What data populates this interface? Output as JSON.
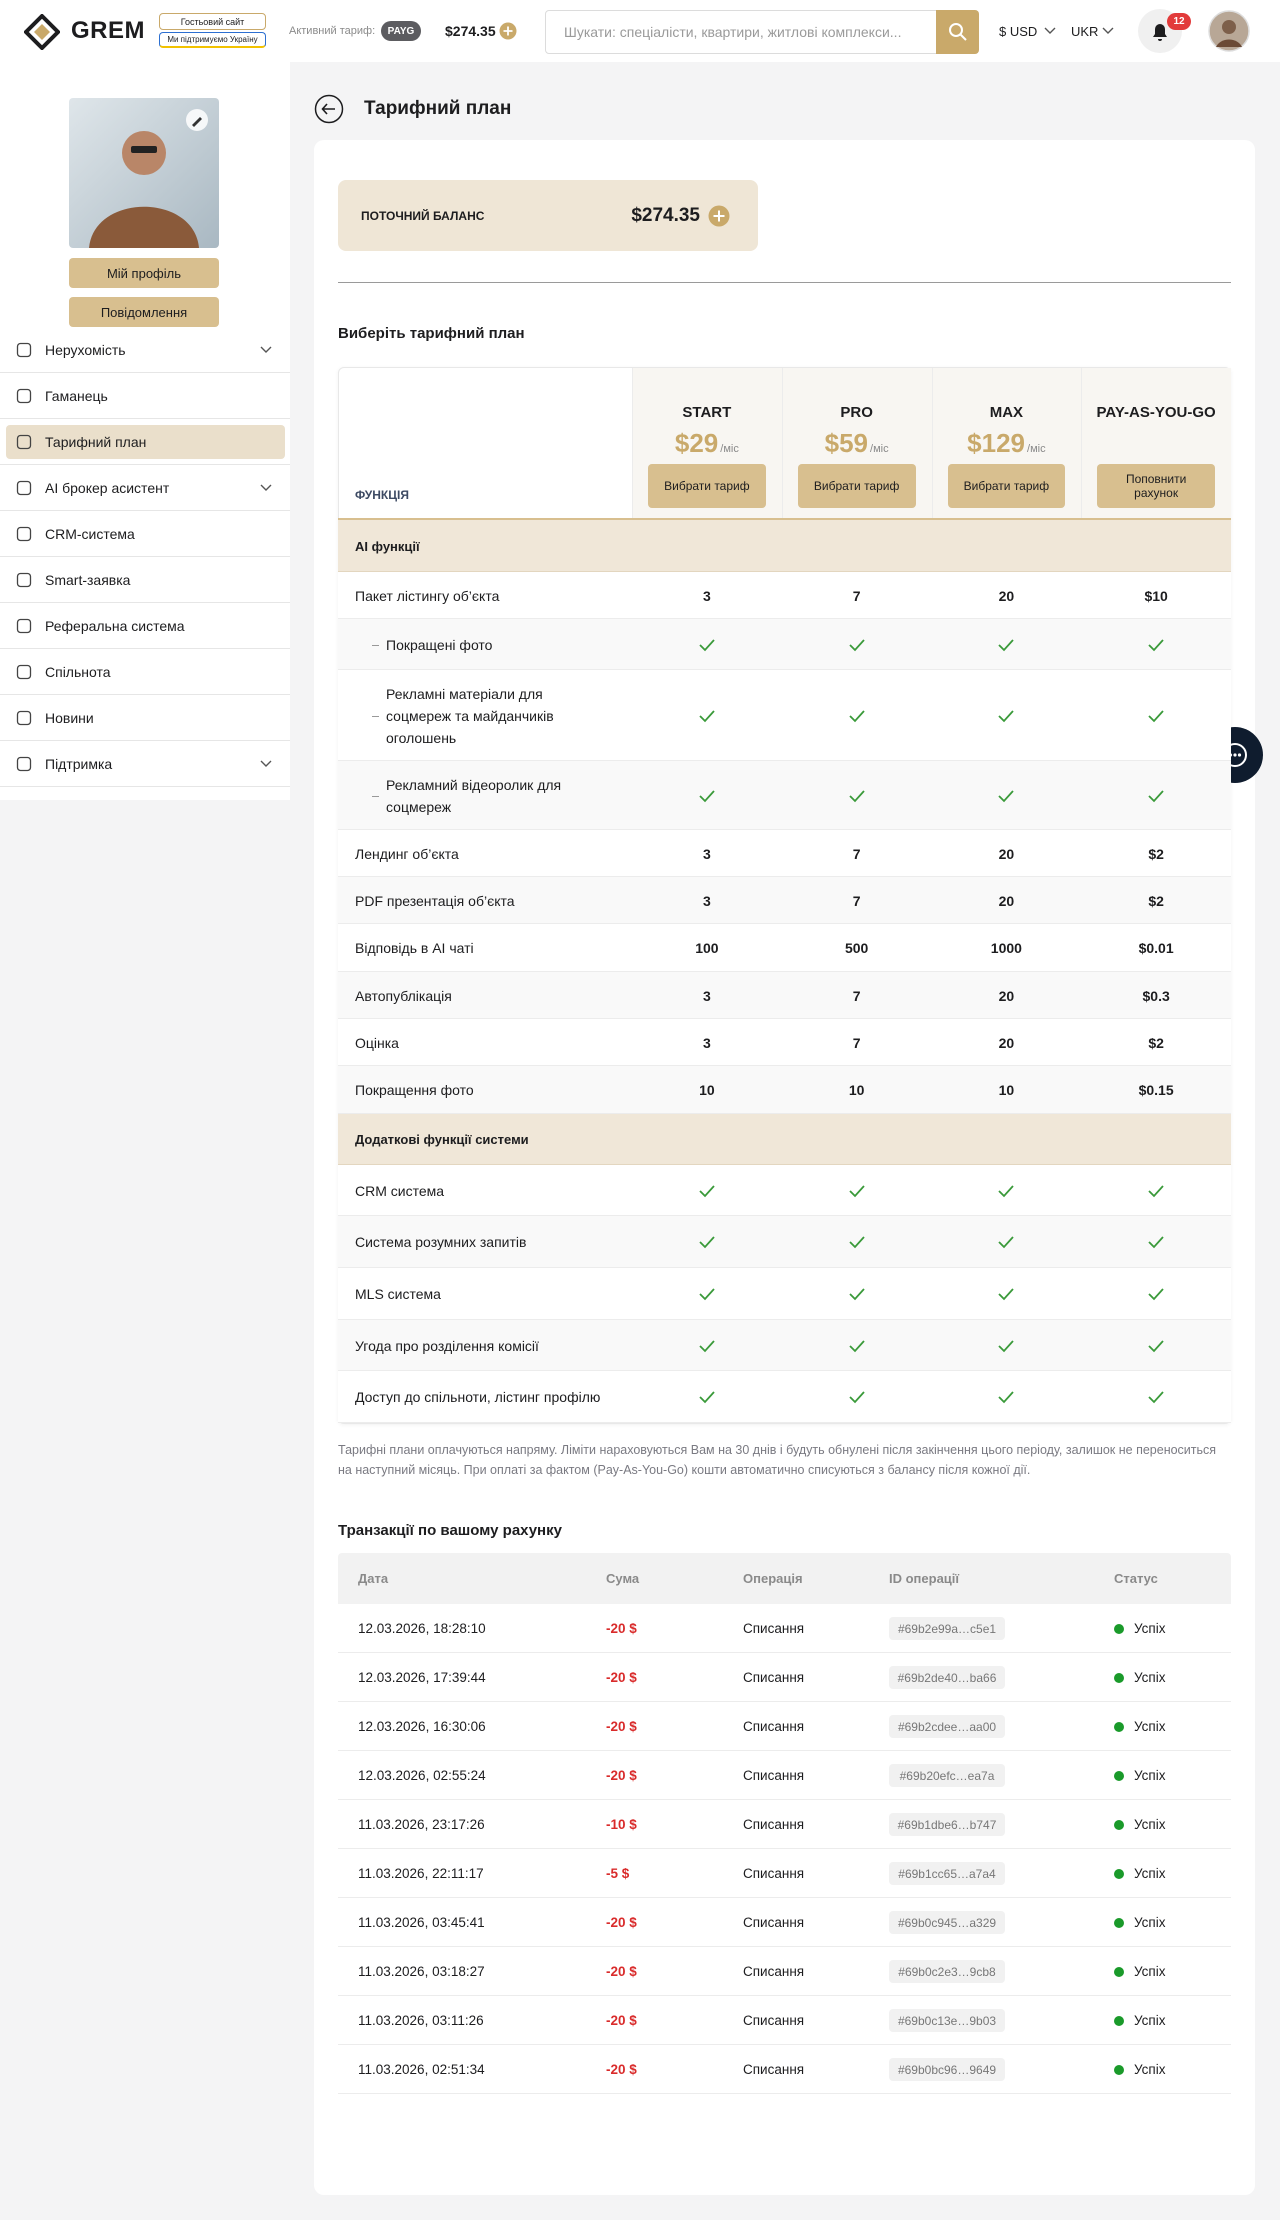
{
  "header": {
    "logo": "GREM",
    "guest_site": "Гостьовий сайт",
    "support_ukraine": "Ми підтримуємо Україну",
    "active_tariff_label": "Активний тариф:",
    "active_tariff": "PAYG",
    "balance": "$274.35",
    "search_placeholder": "Шукати: спеціалісти, квартири, житлові комплекси...",
    "currency": "$ USD",
    "language": "UKR",
    "notifications": "12"
  },
  "sidebar": {
    "buttons": [
      "Мій профіль",
      "Повідомлення"
    ],
    "active": 2,
    "menu": [
      {
        "label": "Нерухомість",
        "expandable": true
      },
      {
        "label": "Гаманець",
        "expandable": false
      },
      {
        "label": "Тарифний план",
        "expandable": false
      },
      {
        "label": "AI брокер асистент",
        "expandable": true
      },
      {
        "label": "CRM-система",
        "expandable": false
      },
      {
        "label": "Smart-заявка",
        "expandable": false
      },
      {
        "label": "Реферальна система",
        "expandable": false
      },
      {
        "label": "Спільнота",
        "expandable": false
      },
      {
        "label": "Новини",
        "expandable": false
      },
      {
        "label": "Підтримка",
        "expandable": true
      }
    ]
  },
  "main": {
    "title": "Тарифний план",
    "balance_label": "ПОТОЧНИЙ БАЛАНС",
    "balance": "$274.35",
    "choose_title": "Виберіть тарифний план",
    "plans_table": {
      "feature_header": "ФУНКЦІЯ",
      "plans": [
        {
          "name": "START",
          "price": "$29",
          "period": "/міс",
          "button": "Вибрати тариф"
        },
        {
          "name": "PRO",
          "price": "$59",
          "period": "/міс",
          "button": "Вибрати тариф"
        },
        {
          "name": "MAX",
          "price": "$129",
          "period": "/міс",
          "button": "Вибрати тариф"
        },
        {
          "name": "PAY-AS-YOU-GO",
          "button": "Поповнити рахунок"
        }
      ],
      "rows": [
        {
          "section": "AI функції"
        },
        {
          "label": "Пакет лістингу об’єкта",
          "values": [
            "3",
            "7",
            "20",
            "$10"
          ]
        },
        {
          "label": "Покращені фото",
          "sub": true,
          "values": [
            true,
            true,
            true,
            true
          ]
        },
        {
          "label": "Рекламні матеріали для соцмереж та майданчиків оголошень",
          "sub": true,
          "values": [
            true,
            true,
            true,
            true
          ]
        },
        {
          "label": "Рекламний відеоролик для соцмереж",
          "sub": true,
          "values": [
            true,
            true,
            true,
            true
          ]
        },
        {
          "label": "Лендинг об’єкта",
          "values": [
            "3",
            "7",
            "20",
            "$2"
          ]
        },
        {
          "label": "PDF презентація об’єкта",
          "values": [
            "3",
            "7",
            "20",
            "$2"
          ]
        },
        {
          "label": "Відповідь в AI чаті",
          "values": [
            "100",
            "500",
            "1000",
            "$0.01"
          ]
        },
        {
          "label": "Автопублікація",
          "values": [
            "3",
            "7",
            "20",
            "$0.3"
          ]
        },
        {
          "label": "Оцінка",
          "values": [
            "3",
            "7",
            "20",
            "$2"
          ]
        },
        {
          "label": "Покращення фото",
          "values": [
            "10",
            "10",
            "10",
            "$0.15"
          ]
        },
        {
          "section": "Додаткові функції системи"
        },
        {
          "label": "CRM система",
          "values": [
            true,
            true,
            true,
            true
          ]
        },
        {
          "label": "Система розумних запитів",
          "values": [
            true,
            true,
            true,
            true
          ]
        },
        {
          "label": "MLS система",
          "values": [
            true,
            true,
            true,
            true
          ]
        },
        {
          "label": "Угода про розділення комісії",
          "values": [
            true,
            true,
            true,
            true
          ]
        },
        {
          "label": "Доступ до спільноти, лістинг профілю",
          "values": [
            true,
            true,
            true,
            true
          ]
        }
      ]
    },
    "note": "Тарифні плани оплачуються напряму. Ліміти нараховуються Вам на 30 днів і будуть обнулені після закінчення цього періоду, залишок не переноситься на наступний місяць. При оплаті за фактом (Pay-As-You-Go) кошти автоматично списуються з балансу після кожної дії.",
    "transactions": {
      "title": "Транзакції по вашому рахунку",
      "columns": [
        "Дата",
        "Сума",
        "Операція",
        "ID операції",
        "Статус"
      ],
      "rows": [
        [
          "12.03.2026, 18:28:10",
          "-20 $",
          "Списання",
          "#69b2e99a…c5e1",
          "Успіх"
        ],
        [
          "12.03.2026, 17:39:44",
          "-20 $",
          "Списання",
          "#69b2de40…ba66",
          "Успіх"
        ],
        [
          "12.03.2026, 16:30:06",
          "-20 $",
          "Списання",
          "#69b2cdee…aa00",
          "Успіх"
        ],
        [
          "12.03.2026, 02:55:24",
          "-20 $",
          "Списання",
          "#69b20efc…ea7a",
          "Успіх"
        ],
        [
          "11.03.2026, 23:17:26",
          "-10 $",
          "Списання",
          "#69b1dbe6…b747",
          "Успіх"
        ],
        [
          "11.03.2026, 22:11:17",
          "-5 $",
          "Списання",
          "#69b1cc65…a7a4",
          "Успіх"
        ],
        [
          "11.03.2026, 03:45:41",
          "-20 $",
          "Списання",
          "#69b0c945…a329",
          "Успіх"
        ],
        [
          "11.03.2026, 03:18:27",
          "-20 $",
          "Списання",
          "#69b0c2e3…9cb8",
          "Успіх"
        ],
        [
          "11.03.2026, 03:11:26",
          "-20 $",
          "Списання",
          "#69b0c13e…9b03",
          "Успіх"
        ],
        [
          "11.03.2026, 02:51:34",
          "-20 $",
          "Списання",
          "#69b0bc96…9649",
          "Успіх"
        ]
      ]
    }
  }
}
